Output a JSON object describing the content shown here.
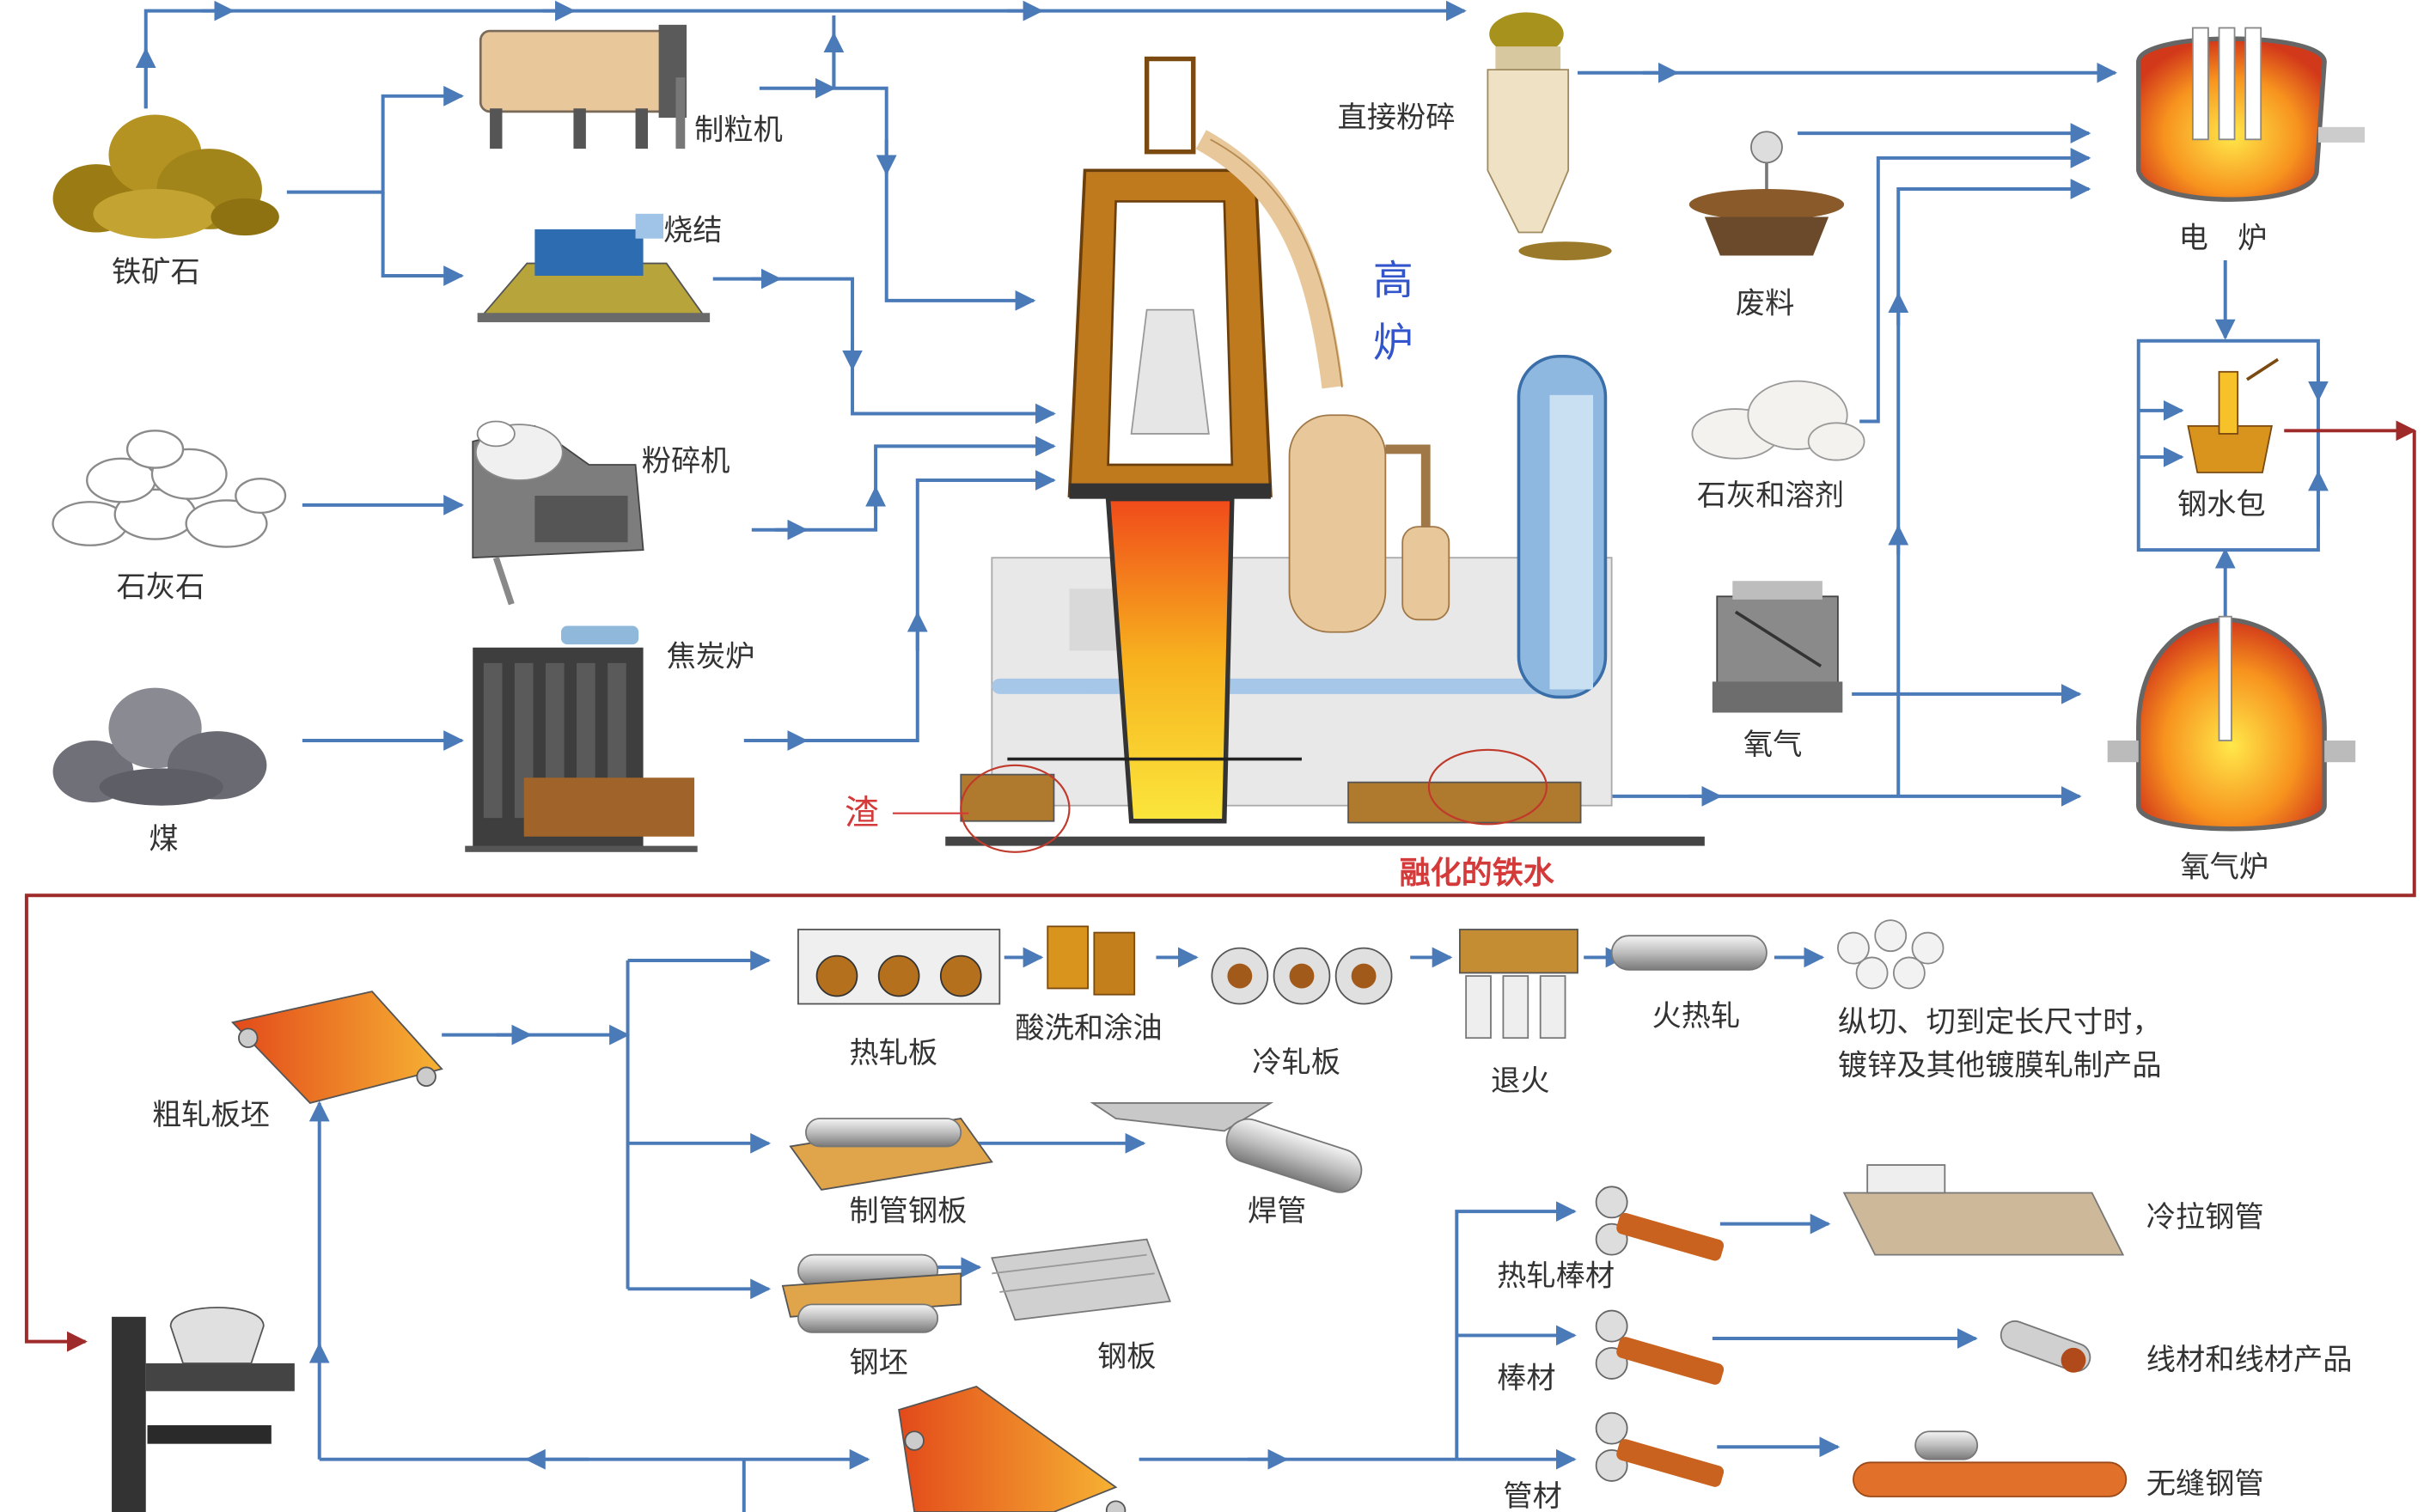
{
  "colors": {
    "flow_arrow": "#4a7ab8",
    "steel_arrow": "#9e2a2a",
    "slag_label": "#d43a3a",
    "molten_label": "#d43a3a",
    "furnace_label": "#3355cc",
    "text": "#333333",
    "ore": "#a88a1e",
    "hot": "#f29a1e",
    "brown": "#b5701e",
    "grey": "#6b6b6b"
  },
  "labels": {
    "iron_ore": "铁矿石",
    "limestone": "石灰石",
    "coal": "煤",
    "pelletizer": "制粒机",
    "sintering": "烧结",
    "crusher": "粉碎机",
    "coke_oven": "焦炭炉",
    "blast_furnace_1": "高",
    "blast_furnace_2": "炉",
    "slag": "渣",
    "molten_iron": "融化的铁水",
    "direct_pulverize": "直接粉碎",
    "scrap": "废料",
    "lime_flux": "石灰和溶剂",
    "oxygen": "氧气",
    "electric_furnace": "电　炉",
    "ladle": "钢水包",
    "oxygen_furnace": "氧气炉",
    "rough_slab": "粗轧板坯",
    "hot_rolled_sheet": "热轧板",
    "pickling_oiling": "酸洗和涂油",
    "cold_rolled_sheet": "冷轧板",
    "annealing": "退火",
    "temper_rolling": "火热轧",
    "finishing_line1": "纵切、切到定长尺寸时，",
    "finishing_line2": "镀锌及其他镀膜轧制产品",
    "pipe_plate": "制管钢板",
    "welded_pipe": "焊管",
    "billet": "钢坯",
    "steel_plate": "钢板",
    "hot_rolled_bar": "热轧棒材",
    "bar": "棒材",
    "tube": "管材",
    "cold_drawn_pipe": "冷拉钢管",
    "wire_products": "线材和线材产品",
    "seamless_pipe": "无缝钢管"
  }
}
